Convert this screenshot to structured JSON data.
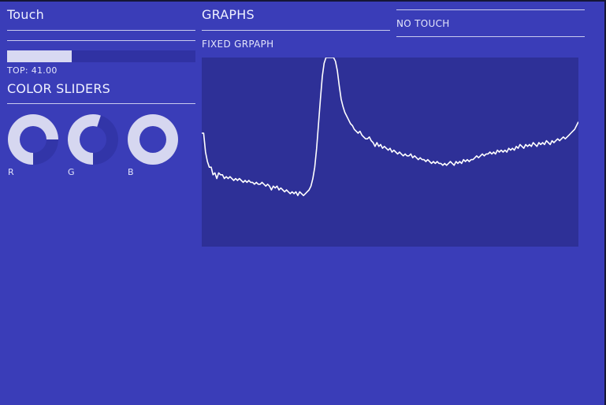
{
  "touch_panel": {
    "title": "Touch",
    "bar_value": 0.345,
    "top_text": "TOP: 41.00"
  },
  "color_sliders": {
    "title": "COLOR SLIDERS",
    "knobs": [
      {
        "label": "R",
        "value": 0.75
      },
      {
        "label": "G",
        "value": 0.55
      },
      {
        "label": "B",
        "value": 1.0
      }
    ],
    "colors": {
      "filled": "#d6d7f0",
      "track": "#3235a8",
      "hole": "#3a3db8"
    }
  },
  "graphs": {
    "title": "GRAPHS",
    "status": "NO TOUCH",
    "subtitle": "FIXED GRPAPH"
  },
  "chart_data": {
    "type": "line",
    "xlim": [
      0,
      1
    ],
    "ylim": [
      0,
      1
    ],
    "series": [
      {
        "values": [
          [
            0.0,
            0.6
          ],
          [
            0.005,
            0.6
          ],
          [
            0.01,
            0.5
          ],
          [
            0.015,
            0.45
          ],
          [
            0.02,
            0.42
          ],
          [
            0.025,
            0.42
          ],
          [
            0.03,
            0.38
          ],
          [
            0.035,
            0.39
          ],
          [
            0.04,
            0.36
          ],
          [
            0.045,
            0.39
          ],
          [
            0.05,
            0.38
          ],
          [
            0.055,
            0.38
          ],
          [
            0.06,
            0.36
          ],
          [
            0.065,
            0.37
          ],
          [
            0.07,
            0.36
          ],
          [
            0.075,
            0.37
          ],
          [
            0.08,
            0.36
          ],
          [
            0.085,
            0.35
          ],
          [
            0.09,
            0.36
          ],
          [
            0.095,
            0.35
          ],
          [
            0.1,
            0.36
          ],
          [
            0.105,
            0.35
          ],
          [
            0.11,
            0.34
          ],
          [
            0.115,
            0.35
          ],
          [
            0.12,
            0.34
          ],
          [
            0.125,
            0.35
          ],
          [
            0.13,
            0.34
          ],
          [
            0.135,
            0.34
          ],
          [
            0.14,
            0.33
          ],
          [
            0.145,
            0.34
          ],
          [
            0.15,
            0.33
          ],
          [
            0.155,
            0.33
          ],
          [
            0.16,
            0.34
          ],
          [
            0.165,
            0.33
          ],
          [
            0.17,
            0.32
          ],
          [
            0.175,
            0.33
          ],
          [
            0.18,
            0.32
          ],
          [
            0.185,
            0.3
          ],
          [
            0.19,
            0.32
          ],
          [
            0.195,
            0.31
          ],
          [
            0.2,
            0.32
          ],
          [
            0.205,
            0.3
          ],
          [
            0.21,
            0.31
          ],
          [
            0.215,
            0.3
          ],
          [
            0.22,
            0.29
          ],
          [
            0.225,
            0.3
          ],
          [
            0.23,
            0.29
          ],
          [
            0.235,
            0.28
          ],
          [
            0.24,
            0.29
          ],
          [
            0.245,
            0.28
          ],
          [
            0.25,
            0.29
          ],
          [
            0.255,
            0.27
          ],
          [
            0.26,
            0.29
          ],
          [
            0.265,
            0.28
          ],
          [
            0.27,
            0.27
          ],
          [
            0.275,
            0.28
          ],
          [
            0.28,
            0.29
          ],
          [
            0.285,
            0.3
          ],
          [
            0.29,
            0.32
          ],
          [
            0.295,
            0.36
          ],
          [
            0.3,
            0.42
          ],
          [
            0.305,
            0.52
          ],
          [
            0.31,
            0.65
          ],
          [
            0.315,
            0.78
          ],
          [
            0.32,
            0.9
          ],
          [
            0.325,
            0.97
          ],
          [
            0.33,
            1.0
          ],
          [
            0.34,
            1.0
          ],
          [
            0.35,
            1.0
          ],
          [
            0.355,
            0.98
          ],
          [
            0.36,
            0.93
          ],
          [
            0.365,
            0.85
          ],
          [
            0.37,
            0.78
          ],
          [
            0.375,
            0.74
          ],
          [
            0.38,
            0.71
          ],
          [
            0.385,
            0.69
          ],
          [
            0.39,
            0.67
          ],
          [
            0.395,
            0.65
          ],
          [
            0.4,
            0.64
          ],
          [
            0.405,
            0.62
          ],
          [
            0.41,
            0.61
          ],
          [
            0.415,
            0.6
          ],
          [
            0.42,
            0.61
          ],
          [
            0.425,
            0.59
          ],
          [
            0.43,
            0.58
          ],
          [
            0.435,
            0.57
          ],
          [
            0.44,
            0.57
          ],
          [
            0.445,
            0.58
          ],
          [
            0.45,
            0.56
          ],
          [
            0.455,
            0.55
          ],
          [
            0.46,
            0.53
          ],
          [
            0.465,
            0.55
          ],
          [
            0.47,
            0.53
          ],
          [
            0.475,
            0.54
          ],
          [
            0.48,
            0.52
          ],
          [
            0.485,
            0.53
          ],
          [
            0.49,
            0.52
          ],
          [
            0.495,
            0.51
          ],
          [
            0.5,
            0.52
          ],
          [
            0.505,
            0.5
          ],
          [
            0.51,
            0.51
          ],
          [
            0.515,
            0.5
          ],
          [
            0.52,
            0.49
          ],
          [
            0.525,
            0.5
          ],
          [
            0.53,
            0.49
          ],
          [
            0.535,
            0.48
          ],
          [
            0.54,
            0.49
          ],
          [
            0.545,
            0.48
          ],
          [
            0.55,
            0.48
          ],
          [
            0.555,
            0.49
          ],
          [
            0.56,
            0.47
          ],
          [
            0.565,
            0.48
          ],
          [
            0.57,
            0.47
          ],
          [
            0.575,
            0.46
          ],
          [
            0.58,
            0.47
          ],
          [
            0.585,
            0.46
          ],
          [
            0.59,
            0.46
          ],
          [
            0.595,
            0.45
          ],
          [
            0.6,
            0.46
          ],
          [
            0.605,
            0.45
          ],
          [
            0.61,
            0.44
          ],
          [
            0.615,
            0.45
          ],
          [
            0.62,
            0.44
          ],
          [
            0.625,
            0.45
          ],
          [
            0.63,
            0.44
          ],
          [
            0.635,
            0.44
          ],
          [
            0.64,
            0.43
          ],
          [
            0.645,
            0.44
          ],
          [
            0.65,
            0.43
          ],
          [
            0.655,
            0.44
          ],
          [
            0.66,
            0.45
          ],
          [
            0.665,
            0.44
          ],
          [
            0.67,
            0.43
          ],
          [
            0.675,
            0.45
          ],
          [
            0.68,
            0.44
          ],
          [
            0.685,
            0.45
          ],
          [
            0.69,
            0.44
          ],
          [
            0.695,
            0.46
          ],
          [
            0.7,
            0.45
          ],
          [
            0.705,
            0.46
          ],
          [
            0.71,
            0.45
          ],
          [
            0.715,
            0.46
          ],
          [
            0.72,
            0.46
          ],
          [
            0.725,
            0.47
          ],
          [
            0.73,
            0.48
          ],
          [
            0.735,
            0.47
          ],
          [
            0.74,
            0.48
          ],
          [
            0.745,
            0.49
          ],
          [
            0.75,
            0.48
          ],
          [
            0.755,
            0.49
          ],
          [
            0.76,
            0.49
          ],
          [
            0.765,
            0.5
          ],
          [
            0.77,
            0.49
          ],
          [
            0.775,
            0.5
          ],
          [
            0.78,
            0.49
          ],
          [
            0.785,
            0.51
          ],
          [
            0.79,
            0.5
          ],
          [
            0.795,
            0.51
          ],
          [
            0.8,
            0.5
          ],
          [
            0.805,
            0.51
          ],
          [
            0.81,
            0.5
          ],
          [
            0.815,
            0.52
          ],
          [
            0.82,
            0.51
          ],
          [
            0.825,
            0.52
          ],
          [
            0.83,
            0.51
          ],
          [
            0.835,
            0.53
          ],
          [
            0.84,
            0.52
          ],
          [
            0.845,
            0.54
          ],
          [
            0.85,
            0.53
          ],
          [
            0.855,
            0.52
          ],
          [
            0.86,
            0.54
          ],
          [
            0.865,
            0.53
          ],
          [
            0.87,
            0.54
          ],
          [
            0.875,
            0.53
          ],
          [
            0.88,
            0.55
          ],
          [
            0.885,
            0.54
          ],
          [
            0.89,
            0.53
          ],
          [
            0.895,
            0.55
          ],
          [
            0.9,
            0.54
          ],
          [
            0.905,
            0.55
          ],
          [
            0.91,
            0.54
          ],
          [
            0.915,
            0.56
          ],
          [
            0.92,
            0.55
          ],
          [
            0.925,
            0.54
          ],
          [
            0.93,
            0.56
          ],
          [
            0.935,
            0.55
          ],
          [
            0.94,
            0.56
          ],
          [
            0.945,
            0.57
          ],
          [
            0.95,
            0.56
          ],
          [
            0.955,
            0.57
          ],
          [
            0.96,
            0.58
          ],
          [
            0.965,
            0.57
          ],
          [
            0.97,
            0.58
          ],
          [
            0.975,
            0.59
          ],
          [
            0.98,
            0.6
          ],
          [
            0.985,
            0.61
          ],
          [
            0.99,
            0.62
          ],
          [
            0.995,
            0.64
          ],
          [
            1.0,
            0.66
          ]
        ]
      }
    ],
    "colors": {
      "line": "#ffffff",
      "plot_bg": "#2e3097"
    }
  }
}
